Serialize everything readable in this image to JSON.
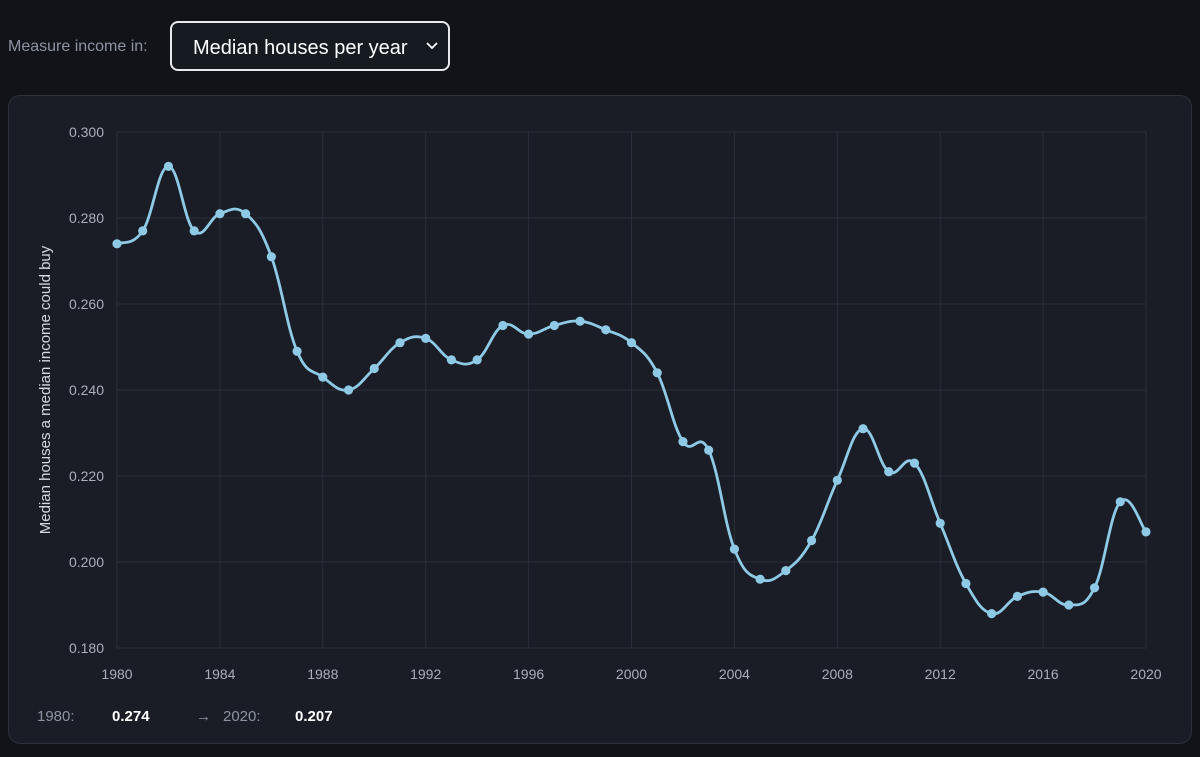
{
  "controls": {
    "measure_label": "Measure income in:",
    "selected_option": "Median houses per year",
    "chevron_icon": "chevron-down-icon"
  },
  "summary": {
    "start_year": "1980:",
    "start_value": "0.274",
    "arrow": "→",
    "end_year": "2020:",
    "end_value": "0.207"
  },
  "colors": {
    "background": "#111318",
    "panel": "#1a1d25",
    "line": "#8ecae6",
    "grid": "#2a2f39",
    "tick_text": "#a9afbb"
  },
  "chart_data": {
    "type": "line",
    "title": "",
    "xlabel": "",
    "ylabel": "Median houses a median income could buy",
    "xlim": [
      1980,
      2020
    ],
    "ylim": [
      0.18,
      0.3
    ],
    "x_ticks": [
      "1980",
      "1984",
      "1988",
      "1992",
      "1996",
      "2000",
      "2004",
      "2008",
      "2012",
      "2016",
      "2020"
    ],
    "y_ticks": [
      "0.180",
      "0.200",
      "0.220",
      "0.240",
      "0.260",
      "0.280",
      "0.300"
    ],
    "grid": true,
    "x": [
      1980,
      1981,
      1982,
      1983,
      1984,
      1985,
      1986,
      1987,
      1988,
      1989,
      1990,
      1991,
      1992,
      1993,
      1994,
      1995,
      1996,
      1997,
      1998,
      1999,
      2000,
      2001,
      2002,
      2003,
      2004,
      2005,
      2006,
      2007,
      2008,
      2009,
      2010,
      2011,
      2012,
      2013,
      2014,
      2015,
      2016,
      2017,
      2018,
      2019,
      2020
    ],
    "series": [
      {
        "values": [
          0.274,
          0.277,
          0.292,
          0.277,
          0.281,
          0.281,
          0.271,
          0.249,
          0.243,
          0.24,
          0.245,
          0.251,
          0.252,
          0.247,
          0.247,
          0.255,
          0.253,
          0.255,
          0.256,
          0.254,
          0.251,
          0.244,
          0.228,
          0.226,
          0.203,
          0.196,
          0.198,
          0.205,
          0.219,
          0.231,
          0.221,
          0.223,
          0.209,
          0.195,
          0.188,
          0.192,
          0.193,
          0.19,
          0.194,
          0.214,
          0.207
        ]
      }
    ]
  }
}
